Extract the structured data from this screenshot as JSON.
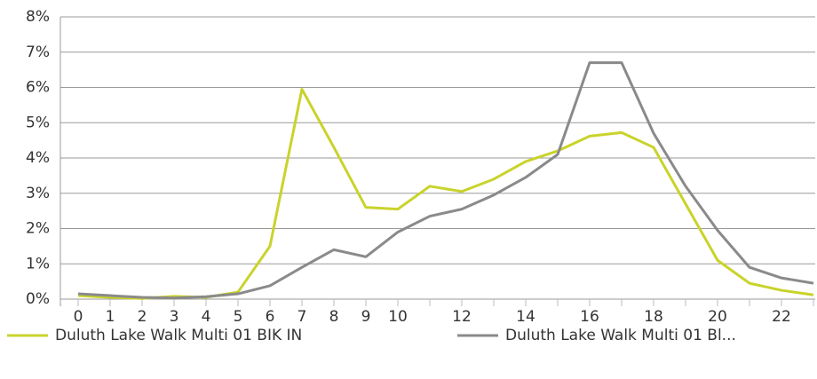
{
  "chart_data": {
    "type": "line",
    "categories": [
      0,
      1,
      2,
      3,
      4,
      5,
      6,
      7,
      8,
      9,
      10,
      null,
      12,
      null,
      14,
      null,
      16,
      null,
      18,
      null,
      20,
      null,
      22,
      null
    ],
    "series": [
      {
        "name": "Duluth Lake Walk Multi 01 BIK IN",
        "color": "#c9d32b",
        "values": [
          0.1,
          0.05,
          0.02,
          0.08,
          0.05,
          0.2,
          1.5,
          5.95,
          4.3,
          2.6,
          2.55,
          3.2,
          3.05,
          3.4,
          3.9,
          4.2,
          4.62,
          4.72,
          4.3,
          2.7,
          1.1,
          0.45,
          0.25,
          0.12
        ]
      },
      {
        "name": "Duluth Lake Walk Multi 01 Bl...",
        "color": "#8a8a8a",
        "values": [
          0.15,
          0.1,
          0.05,
          0.03,
          0.07,
          0.15,
          0.38,
          0.9,
          1.4,
          1.2,
          1.9,
          2.35,
          2.55,
          2.95,
          3.45,
          4.1,
          6.7,
          6.7,
          4.7,
          3.2,
          1.95,
          0.9,
          0.6,
          0.45
        ]
      }
    ],
    "ylim": [
      0,
      8
    ],
    "yticks": [
      {
        "value": 0,
        "label": "0%"
      },
      {
        "value": 1,
        "label": "1%"
      },
      {
        "value": 2,
        "label": "2%"
      },
      {
        "value": 3,
        "label": "3%"
      },
      {
        "value": 4,
        "label": "4%"
      },
      {
        "value": 5,
        "label": "5%"
      },
      {
        "value": 6,
        "label": "6%"
      },
      {
        "value": 7,
        "label": "7%"
      },
      {
        "value": 8,
        "label": "8%"
      }
    ],
    "grid": true,
    "legend": "bottom"
  }
}
